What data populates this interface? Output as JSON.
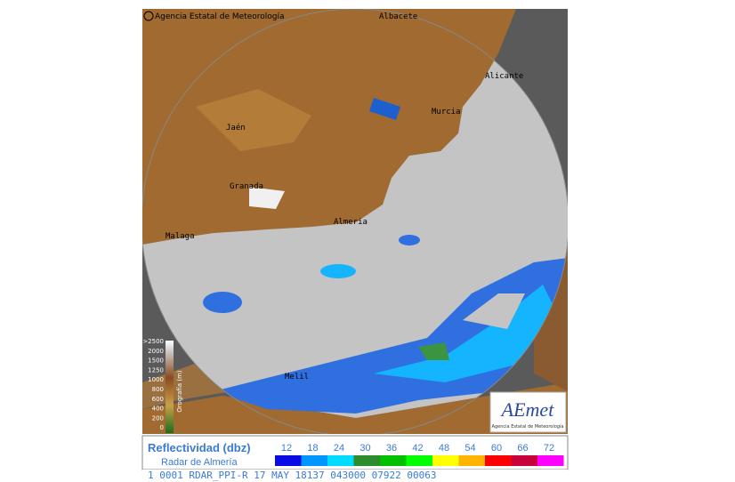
{
  "header": {
    "copyright": "Agencia Estatal de Meteorología"
  },
  "cities": [
    {
      "label": "Albacete"
    },
    {
      "label": "Alicante"
    },
    {
      "label": "Murcia"
    },
    {
      "label": "Jaén"
    },
    {
      "label": "Granada"
    },
    {
      "label": "Almeria"
    },
    {
      "label": "Malaga"
    },
    {
      "label": "Melil"
    }
  ],
  "elevation_legend": {
    "title": "Orografía (m)",
    "labels": [
      ">2500",
      "2000",
      "1500",
      "1250",
      "1000",
      "800",
      "600",
      "400",
      "200",
      "0"
    ]
  },
  "logo": {
    "name": "AEmet",
    "subtitle": "Agencia Estatal de Meteorología"
  },
  "reflectivity_legend": {
    "title": "Reflectividad (dbz)",
    "subtitle": "Radar de Almería",
    "ticks": [
      12,
      18,
      24,
      30,
      36,
      42,
      48,
      54,
      60,
      66,
      72
    ],
    "colors": [
      "#0a0ae6",
      "#0096ff",
      "#00dcff",
      "#2d8c2d",
      "#00c000",
      "#00ff00",
      "#ffff00",
      "#ffb400",
      "#ff0000",
      "#c8003c",
      "#ff00ff"
    ]
  },
  "status_line": "1 0001 RDAR_PPI-R  17 MAY 18137 043000 07922 00063"
}
